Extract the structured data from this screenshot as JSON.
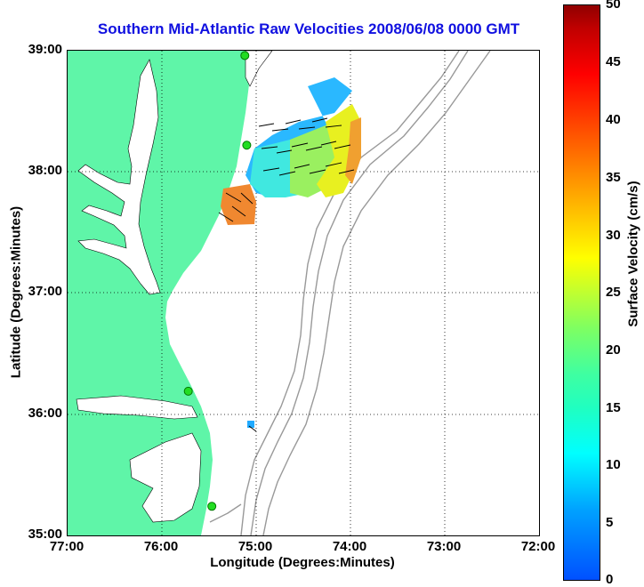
{
  "title": "Southern Mid-Atlantic Raw Velocities 2008/06/08 0000 GMT",
  "axes": {
    "xlabel": "Longitude (Degrees:Minutes)",
    "ylabel": "Latitude (Degrees:Minutes)",
    "xticks": [
      "77:00",
      "76:00",
      "75:00",
      "74:00",
      "73:00",
      "72:00"
    ],
    "yticks": [
      "39:00",
      "38:00",
      "37:00",
      "36:00",
      "35:00"
    ]
  },
  "colorbar": {
    "label": "Surface Velocity (cm/s)",
    "ticks": [
      "50",
      "45",
      "40",
      "35",
      "30",
      "25",
      "20",
      "15",
      "10",
      "5",
      "0"
    ],
    "range": [
      0,
      50
    ]
  },
  "colors": {
    "land": "#5ff5a8",
    "title": "#1010e0",
    "bathymetry": "#999999",
    "stations": "#22dd22"
  },
  "map_extent": {
    "lon": [
      -77,
      -72
    ],
    "lat": [
      35,
      39
    ]
  },
  "stations": [
    {
      "lon": -75.12,
      "lat": 38.96
    },
    {
      "lon": -75.1,
      "lat": 38.22
    },
    {
      "lon": -75.72,
      "lat": 36.19
    },
    {
      "lon": -75.47,
      "lat": 35.24
    }
  ]
}
